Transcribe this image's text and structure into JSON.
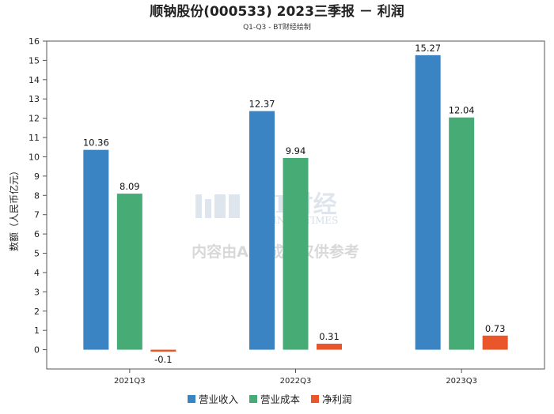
{
  "chart_data": {
    "type": "bar",
    "title": "顺钠股份(000533) 2023三季报 － 利润",
    "subtitle": "Q1-Q3 - BT财经绘制",
    "xlabel": "",
    "ylabel": "数额（人民币亿元）",
    "ylim": [
      -1,
      16
    ],
    "yticks": [
      0,
      1,
      2,
      3,
      4,
      5,
      6,
      7,
      8,
      9,
      10,
      11,
      12,
      13,
      14,
      15,
      16
    ],
    "categories": [
      "2021Q3",
      "2022Q3",
      "2023Q3"
    ],
    "series": [
      {
        "name": "营业收入",
        "color": "#3a84c4",
        "values": [
          10.36,
          12.37,
          15.27
        ]
      },
      {
        "name": "营业成本",
        "color": "#47ab76",
        "values": [
          8.09,
          9.94,
          12.04
        ]
      },
      {
        "name": "净利润",
        "color": "#e8562a",
        "values": [
          -0.1,
          0.31,
          0.73
        ]
      }
    ],
    "legend_position": "bottom-center",
    "grid": false
  },
  "watermark": {
    "brand": "BT财经",
    "brand_en": "BUSINESSTIMES",
    "notice": "内容由AI生成，仅供参考"
  }
}
